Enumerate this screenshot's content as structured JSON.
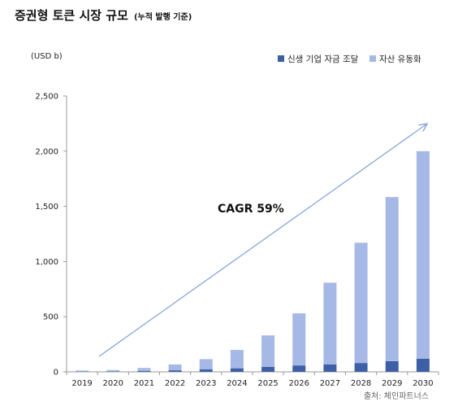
{
  "title": "증권형 토큰 시장 규모",
  "subtitle": "(누적 발행 기준)",
  "unit_label": "(USD b)",
  "source": "출처: 체인파트너스",
  "colors": {
    "dark": "#3c5fa6",
    "light": "#a6b8e6",
    "axis": "#999999",
    "arrow": "#8aa6d9"
  },
  "chart_data": {
    "type": "bar",
    "stacked": true,
    "categories": [
      "2019",
      "2020",
      "2021",
      "2022",
      "2023",
      "2024",
      "2025",
      "2026",
      "2027",
      "2028",
      "2029",
      "2030"
    ],
    "series": [
      {
        "name": "신생 기업 자금 조달",
        "color": "#3c5fa6",
        "values": [
          2,
          3,
          8,
          14,
          22,
          32,
          45,
          58,
          68,
          80,
          97,
          118
        ]
      },
      {
        "name": "자산 유동화",
        "color": "#a6b8e6",
        "values": [
          10,
          13,
          27,
          53,
          93,
          166,
          285,
          472,
          740,
          1090,
          1487,
          1882
        ]
      }
    ],
    "ylim": [
      0,
      2500
    ],
    "yticks": [
      0,
      500,
      1000,
      1500,
      2000,
      2500
    ],
    "ytick_labels": [
      "0",
      "500",
      "1,000",
      "1,500",
      "2,000",
      "2,500"
    ],
    "legend_position": "top-right",
    "annotation": "CAGR 59%"
  }
}
